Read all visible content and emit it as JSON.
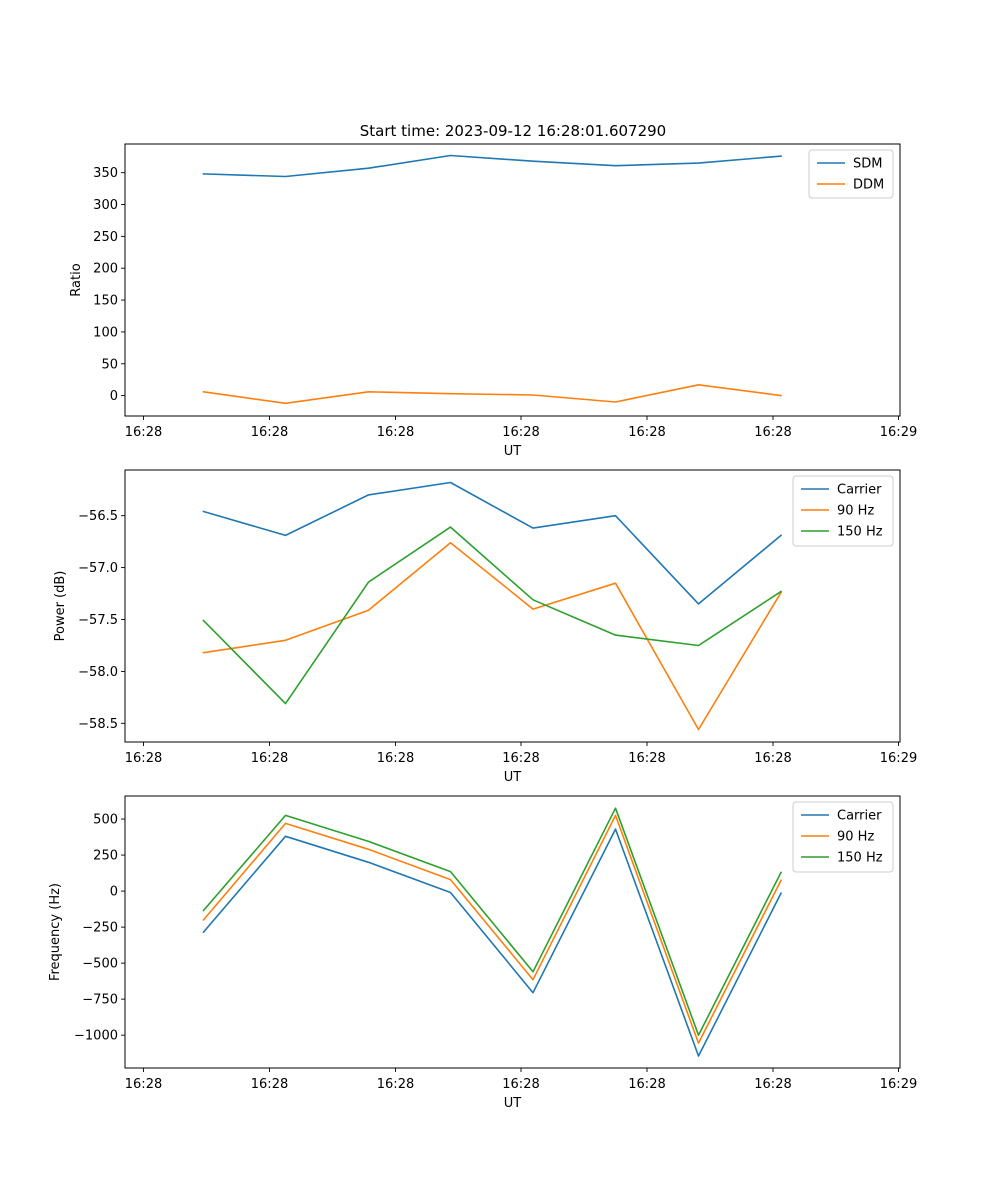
{
  "figure_title": "Start time: 2023-09-12 16:28:01.607290",
  "chart_data": [
    {
      "type": "line",
      "xlabel": "UT",
      "ylabel": "Ratio",
      "x_ticks": [
        "16:28",
        "16:28",
        "16:28",
        "16:28",
        "16:28",
        "16:28",
        "16:29"
      ],
      "x_index": [
        0,
        1,
        2,
        3,
        4,
        5,
        6,
        7
      ],
      "yticks": [
        0,
        50,
        100,
        150,
        200,
        250,
        300,
        350
      ],
      "ytick_labels": [
        "0",
        "50",
        "100",
        "150",
        "200",
        "250",
        "300",
        "350"
      ],
      "ylim": [
        -32,
        395
      ],
      "legend_placement": "top-right",
      "series": [
        {
          "name": "SDM",
          "color": "#1f77b4",
          "values": [
            348,
            344,
            357,
            377,
            368,
            361,
            365,
            376
          ]
        },
        {
          "name": "DDM",
          "color": "#ff7f0e",
          "values": [
            6,
            -12,
            6,
            3,
            1,
            -10,
            17,
            0
          ]
        }
      ]
    },
    {
      "type": "line",
      "xlabel": "UT",
      "ylabel": "Power (dB)",
      "x_ticks": [
        "16:28",
        "16:28",
        "16:28",
        "16:28",
        "16:28",
        "16:28",
        "16:29"
      ],
      "x_index": [
        0,
        1,
        2,
        3,
        4,
        5,
        6,
        7
      ],
      "yticks": [
        -58.5,
        -58.0,
        -57.5,
        -57.0,
        -56.5
      ],
      "ytick_labels": [
        "−58.5",
        "−58.0",
        "−57.5",
        "−57.0",
        "−56.5"
      ],
      "ylim": [
        -58.68,
        -56.06
      ],
      "legend_placement": "top-right",
      "series": [
        {
          "name": "Carrier",
          "color": "#1f77b4",
          "values": [
            -56.46,
            -56.69,
            -56.3,
            -56.18,
            -56.62,
            -56.5,
            -57.35,
            -56.69
          ]
        },
        {
          "name": "90 Hz",
          "color": "#ff7f0e",
          "values": [
            -57.82,
            -57.7,
            -57.41,
            -56.76,
            -57.4,
            -57.15,
            -58.56,
            -57.24
          ]
        },
        {
          "name": "150 Hz",
          "color": "#2ca02c",
          "values": [
            -57.51,
            -58.31,
            -57.14,
            -56.61,
            -57.31,
            -57.65,
            -57.75,
            -57.23
          ]
        }
      ]
    },
    {
      "type": "line",
      "xlabel": "UT",
      "ylabel": "Frequency (Hz)",
      "x_ticks": [
        "16:28",
        "16:28",
        "16:28",
        "16:28",
        "16:28",
        "16:28",
        "16:29"
      ],
      "x_index": [
        0,
        1,
        2,
        3,
        4,
        5,
        6,
        7
      ],
      "yticks": [
        -1000,
        -750,
        -500,
        -250,
        0,
        250,
        500
      ],
      "ytick_labels": [
        "−1000",
        "−750",
        "−500",
        "−250",
        "0",
        "250",
        "500"
      ],
      "ylim": [
        -1228,
        660
      ],
      "legend_placement": "top-right",
      "series": [
        {
          "name": "Carrier",
          "color": "#1f77b4",
          "values": [
            -285,
            380,
            200,
            -10,
            -705,
            430,
            -1145,
            -15
          ]
        },
        {
          "name": "90 Hz",
          "color": "#ff7f0e",
          "values": [
            -200,
            470,
            290,
            80,
            -615,
            525,
            -1055,
            75
          ]
        },
        {
          "name": "150 Hz",
          "color": "#2ca02c",
          "values": [
            -135,
            525,
            345,
            135,
            -560,
            575,
            -1000,
            130
          ]
        }
      ]
    }
  ]
}
